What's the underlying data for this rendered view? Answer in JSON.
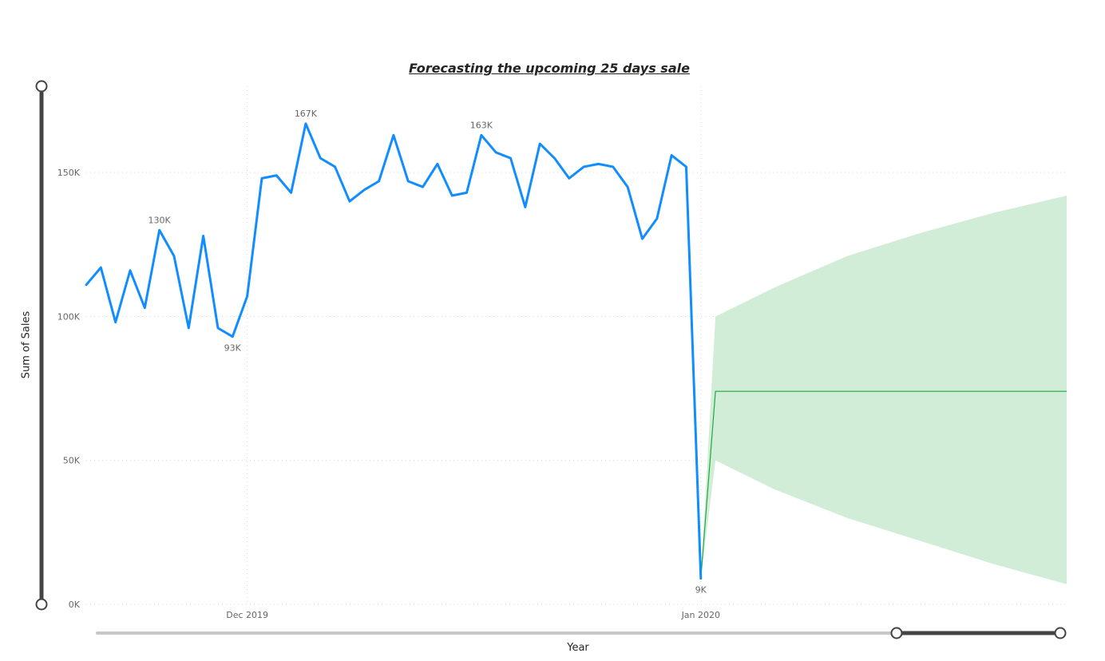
{
  "chart_data": {
    "type": "line",
    "title": "Forecasting the upcoming 25 days sale",
    "xlabel": "Year",
    "ylabel": "Sum of Sales",
    "ylim": [
      0,
      180000
    ],
    "y_ticks": [
      {
        "value": 0,
        "label": "0K"
      },
      {
        "value": 50000,
        "label": "50K"
      },
      {
        "value": 100000,
        "label": "100K"
      },
      {
        "value": 150000,
        "label": "150K"
      }
    ],
    "x_ticks": [
      {
        "value": "2019-12-01",
        "label": "Dec 2019"
      },
      {
        "value": "2020-01-01",
        "label": "Jan 2020"
      }
    ],
    "xlim": [
      "2019-11-20",
      "2020-01-26"
    ],
    "grid": true,
    "series": [
      {
        "color": "#118DFF",
        "x": [
          "2019-11-20",
          "2019-11-21",
          "2019-11-22",
          "2019-11-23",
          "2019-11-24",
          "2019-11-25",
          "2019-11-26",
          "2019-11-27",
          "2019-11-28",
          "2019-11-29",
          "2019-11-30",
          "2019-12-01",
          "2019-12-02",
          "2019-12-03",
          "2019-12-04",
          "2019-12-05",
          "2019-12-06",
          "2019-12-07",
          "2019-12-08",
          "2019-12-09",
          "2019-12-10",
          "2019-12-11",
          "2019-12-12",
          "2019-12-13",
          "2019-12-14",
          "2019-12-15",
          "2019-12-16",
          "2019-12-17",
          "2019-12-18",
          "2019-12-19",
          "2019-12-20",
          "2019-12-21",
          "2019-12-22",
          "2019-12-23",
          "2019-12-24",
          "2019-12-25",
          "2019-12-26",
          "2019-12-27",
          "2019-12-28",
          "2019-12-29",
          "2019-12-30",
          "2019-12-31",
          "2020-01-01"
        ],
        "values": [
          111000,
          117000,
          98000,
          116000,
          103000,
          130000,
          121000,
          96000,
          128000,
          96000,
          93000,
          107000,
          148000,
          149000,
          143000,
          167000,
          155000,
          152000,
          140000,
          144000,
          147000,
          163000,
          147000,
          145000,
          153000,
          142000,
          143000,
          163000,
          157000,
          155000,
          138000,
          160000,
          155000,
          148000,
          152000,
          153000,
          152000,
          145000,
          127000,
          134000,
          156000,
          152000,
          9000
        ]
      },
      {
        "color": "#1AAB40",
        "x": [
          "2020-01-01",
          "2020-01-02",
          "2020-01-26"
        ],
        "values": [
          9000,
          74000,
          74000
        ]
      },
      {
        "color": "#D2EDD7",
        "x": [
          "2020-01-01",
          "2020-01-02",
          "2020-01-06",
          "2020-01-11",
          "2020-01-16",
          "2020-01-21",
          "2020-01-26"
        ],
        "lower": [
          9000,
          50000,
          40000,
          30000,
          22000,
          14000,
          7000
        ],
        "upper": [
          9000,
          100000,
          110000,
          121000,
          129000,
          136000,
          142000
        ]
      }
    ],
    "data_labels": [
      {
        "x": "2019-11-25",
        "value": 130000,
        "label": "130K",
        "pos": "above"
      },
      {
        "x": "2019-11-30",
        "value": 93000,
        "label": "93K",
        "pos": "below"
      },
      {
        "x": "2019-12-05",
        "value": 167000,
        "label": "167K",
        "pos": "above"
      },
      {
        "x": "2019-12-17",
        "value": 163000,
        "label": "163K",
        "pos": "above"
      },
      {
        "x": "2020-01-01",
        "value": 9000,
        "label": "9K",
        "pos": "below"
      }
    ],
    "x_zoom_slider": {
      "start": 0.83,
      "end": 1.0
    }
  }
}
